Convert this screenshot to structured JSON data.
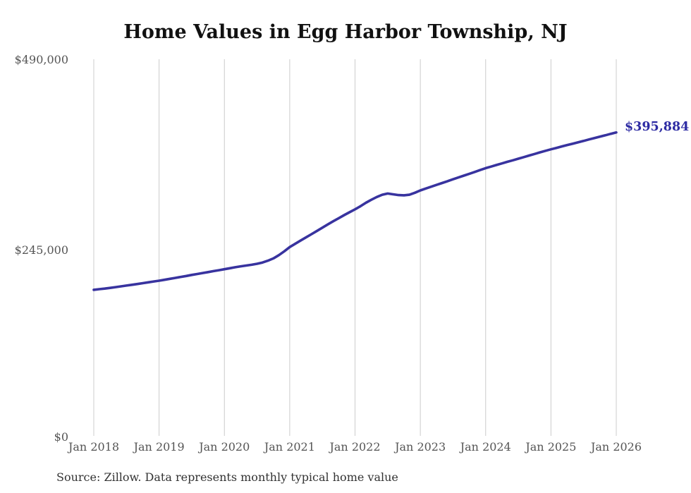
{
  "chart": {
    "title": "Home Values in Egg Harbor Township, NJ",
    "source": "Source: Zillow. Data represents monthly typical home value"
  },
  "chart_data": {
    "type": "line",
    "title": "Home Values in Egg Harbor Township, NJ",
    "x_start": "Jan 2018",
    "x_interval": "monthly",
    "x_tick_labels": [
      "Jan 2018",
      "Jan 2019",
      "Jan 2020",
      "Jan 2021",
      "Jan 2022",
      "Jan 2023",
      "Jan 2024",
      "Jan 2025",
      "Jan 2026"
    ],
    "y_tick_labels": [
      "$0",
      "$245,000",
      "$490,000"
    ],
    "y_tick_values": [
      0,
      245000,
      490000
    ],
    "ylim": [
      0,
      490000
    ],
    "grid": "vertical-only",
    "grid_color": "#cccccc",
    "line_color": "#38339f",
    "end_label": "$395,884",
    "end_value": 395884,
    "values": [
      191500,
      192300,
      193100,
      194000,
      195000,
      196000,
      197000,
      198000,
      199000,
      200100,
      201200,
      202300,
      203300,
      204500,
      205800,
      207000,
      208300,
      209500,
      210800,
      212000,
      213300,
      214500,
      215800,
      217000,
      218300,
      219500,
      220800,
      222000,
      223000,
      224000,
      225300,
      227000,
      229300,
      232300,
      236500,
      241500,
      247000,
      251200,
      255400,
      259600,
      263800,
      268000,
      272200,
      276400,
      280500,
      284500,
      288500,
      292300,
      296000,
      300000,
      304500,
      308500,
      312000,
      315000,
      316500,
      315500,
      314500,
      314200,
      315000,
      317500,
      320600,
      323000,
      325400,
      327800,
      330200,
      332600,
      335000,
      337400,
      339800,
      342200,
      344600,
      347000,
      349500,
      351500,
      353600,
      355600,
      357700,
      359700,
      361800,
      363800,
      365900,
      367900,
      370000,
      372000,
      374000,
      375800,
      377700,
      379500,
      381300,
      383100,
      384900,
      386800,
      388600,
      390400,
      392200,
      394100,
      395884
    ]
  }
}
